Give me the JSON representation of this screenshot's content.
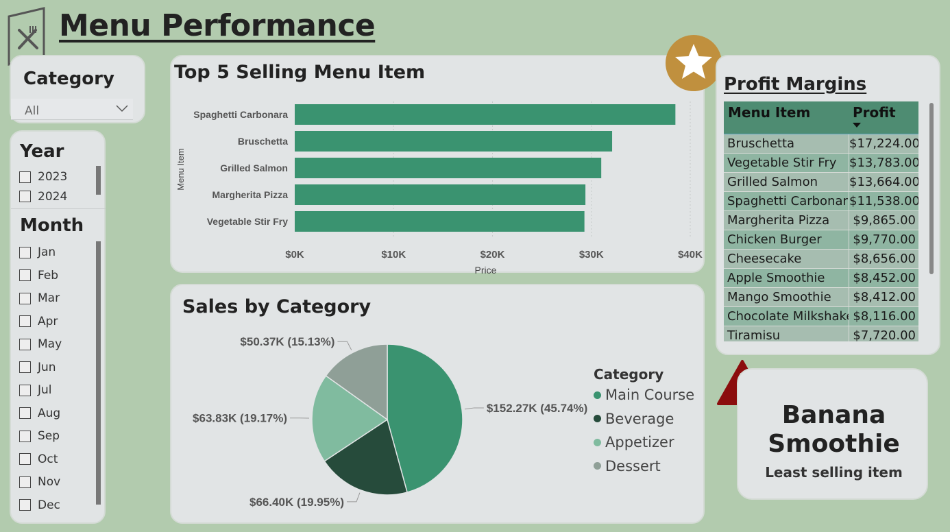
{
  "header": {
    "title": "Menu Performance",
    "logo_icon": "menu-utensils-icon"
  },
  "category_slicer": {
    "title": "Category",
    "selected_value": "All"
  },
  "date_slicer": {
    "year_title": "Year",
    "years": [
      "2023",
      "2024"
    ],
    "month_title": "Month",
    "months": [
      "Jan",
      "Feb",
      "Mar",
      "Apr",
      "May",
      "Jun",
      "Jul",
      "Aug",
      "Sep",
      "Oct",
      "Nov",
      "Dec"
    ]
  },
  "top5": {
    "chart_data": {
      "type": "bar",
      "orientation": "horizontal",
      "title": "Top 5 Selling Menu Item",
      "xlabel": "Price",
      "ylabel": "Menu Item",
      "categories": [
        "Spaghetti Carbonara",
        "Bruschetta",
        "Grilled Salmon",
        "Margherita Pizza",
        "Vegetable Stir Fry"
      ],
      "values": [
        38500,
        32100,
        31000,
        29400,
        29300
      ],
      "xlim": [
        0,
        40000
      ],
      "x_ticks": [
        "$0K",
        "$10K",
        "$20K",
        "$30K",
        "$40K"
      ],
      "grid": "vertical dashed",
      "color": "#3a9370"
    }
  },
  "sales_by_category": {
    "chart_data": {
      "type": "pie",
      "title": "Sales by Category",
      "legend_title": "Category",
      "legend_position": "right",
      "slices": [
        {
          "name": "Main Course",
          "value": 152.27,
          "label": "$152.27K (45.74%)",
          "color": "#3a9370"
        },
        {
          "name": "Beverage",
          "value": 66.4,
          "label": "$66.40K (19.95%)",
          "color": "#264b3b"
        },
        {
          "name": "Appetizer",
          "value": 63.83,
          "label": "$63.83K (19.17%)",
          "color": "#80bb9f"
        },
        {
          "name": "Dessert",
          "value": 50.37,
          "label": "$50.37K (15.13%)",
          "color": "#8f9f97"
        }
      ]
    }
  },
  "profit_margins": {
    "title": "Profit Margins",
    "columns": [
      "Menu Item",
      "Profit"
    ],
    "rows": [
      {
        "item": "Bruschetta",
        "profit": "$17,224.00"
      },
      {
        "item": "Vegetable Stir Fry",
        "profit": "$13,783.00"
      },
      {
        "item": "Grilled Salmon",
        "profit": "$13,664.00"
      },
      {
        "item": "Spaghetti Carbonara",
        "profit": "$11,538.00"
      },
      {
        "item": "Margherita Pizza",
        "profit": "$9,865.00"
      },
      {
        "item": "Chicken Burger",
        "profit": "$9,770.00"
      },
      {
        "item": "Cheesecake",
        "profit": "$8,656.00"
      },
      {
        "item": "Apple Smoothie",
        "profit": "$8,452.00"
      },
      {
        "item": "Mango Smoothie",
        "profit": "$8,412.00"
      },
      {
        "item": "Chocolate Milkshake",
        "profit": "$8,116.00"
      },
      {
        "item": "Tiramisu",
        "profit": "$7,720.00"
      }
    ],
    "row_colors": [
      "#a6bdb0",
      "#8fb5a2"
    ],
    "header_color": "#4e8c72"
  },
  "least_selling": {
    "item": "Banana Smoothie",
    "caption": "Least selling item",
    "icon": "warning-icon"
  },
  "badges": {
    "star_icon": "star-badge-icon",
    "star_color": "#c0903e"
  }
}
